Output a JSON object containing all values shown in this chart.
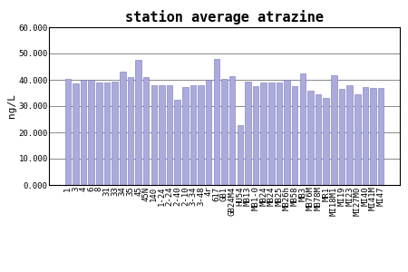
{
  "title": "station average atrazine",
  "ylabel": "ng/L",
  "ylim": [
    0,
    60000
  ],
  "yticks": [
    0,
    10000,
    20000,
    30000,
    40000,
    50000,
    60000
  ],
  "ytick_labels": [
    "0.000",
    "10.000",
    "20.000",
    "30.000",
    "40.000",
    "50.000",
    "60.000"
  ],
  "bar_color": "#aaaadd",
  "bar_edgecolor": "#7777bb",
  "categories": [
    "1",
    "3",
    "4",
    "6",
    "8",
    "31",
    "33",
    "34",
    "35",
    "45",
    "45N",
    "140",
    "1-24",
    "2-24",
    "2-40",
    "2-10",
    "3-34",
    "3-48",
    "4r",
    "617",
    "GB1",
    "GB24M4",
    "HU54",
    "MB13",
    "MB1-0",
    "MB24",
    "MB24",
    "MB25",
    "MB26h",
    "MB58",
    "MB3",
    "MB76M",
    "MB78M",
    "MR1",
    "MI18M1",
    "MI19",
    "MI23",
    "MI27M0",
    "MI40",
    "MI41M",
    "MI47"
  ],
  "values": [
    40200,
    38500,
    40100,
    40000,
    39000,
    38800,
    39200,
    43000,
    41200,
    47500,
    41200,
    38000,
    37800,
    38000,
    32500,
    37200,
    38000,
    37800,
    40000,
    47800,
    40500,
    41500,
    22800,
    39200,
    37500,
    38800,
    39000,
    38900,
    40000,
    37700,
    42400,
    35700,
    34500,
    33200,
    41600,
    36700,
    37900,
    34500,
    37300,
    37000,
    37000
  ],
  "background_color": "#ffffff",
  "grid_color": "#888888",
  "title_fontsize": 11,
  "label_fontsize": 8,
  "tick_fontsize": 6.5
}
